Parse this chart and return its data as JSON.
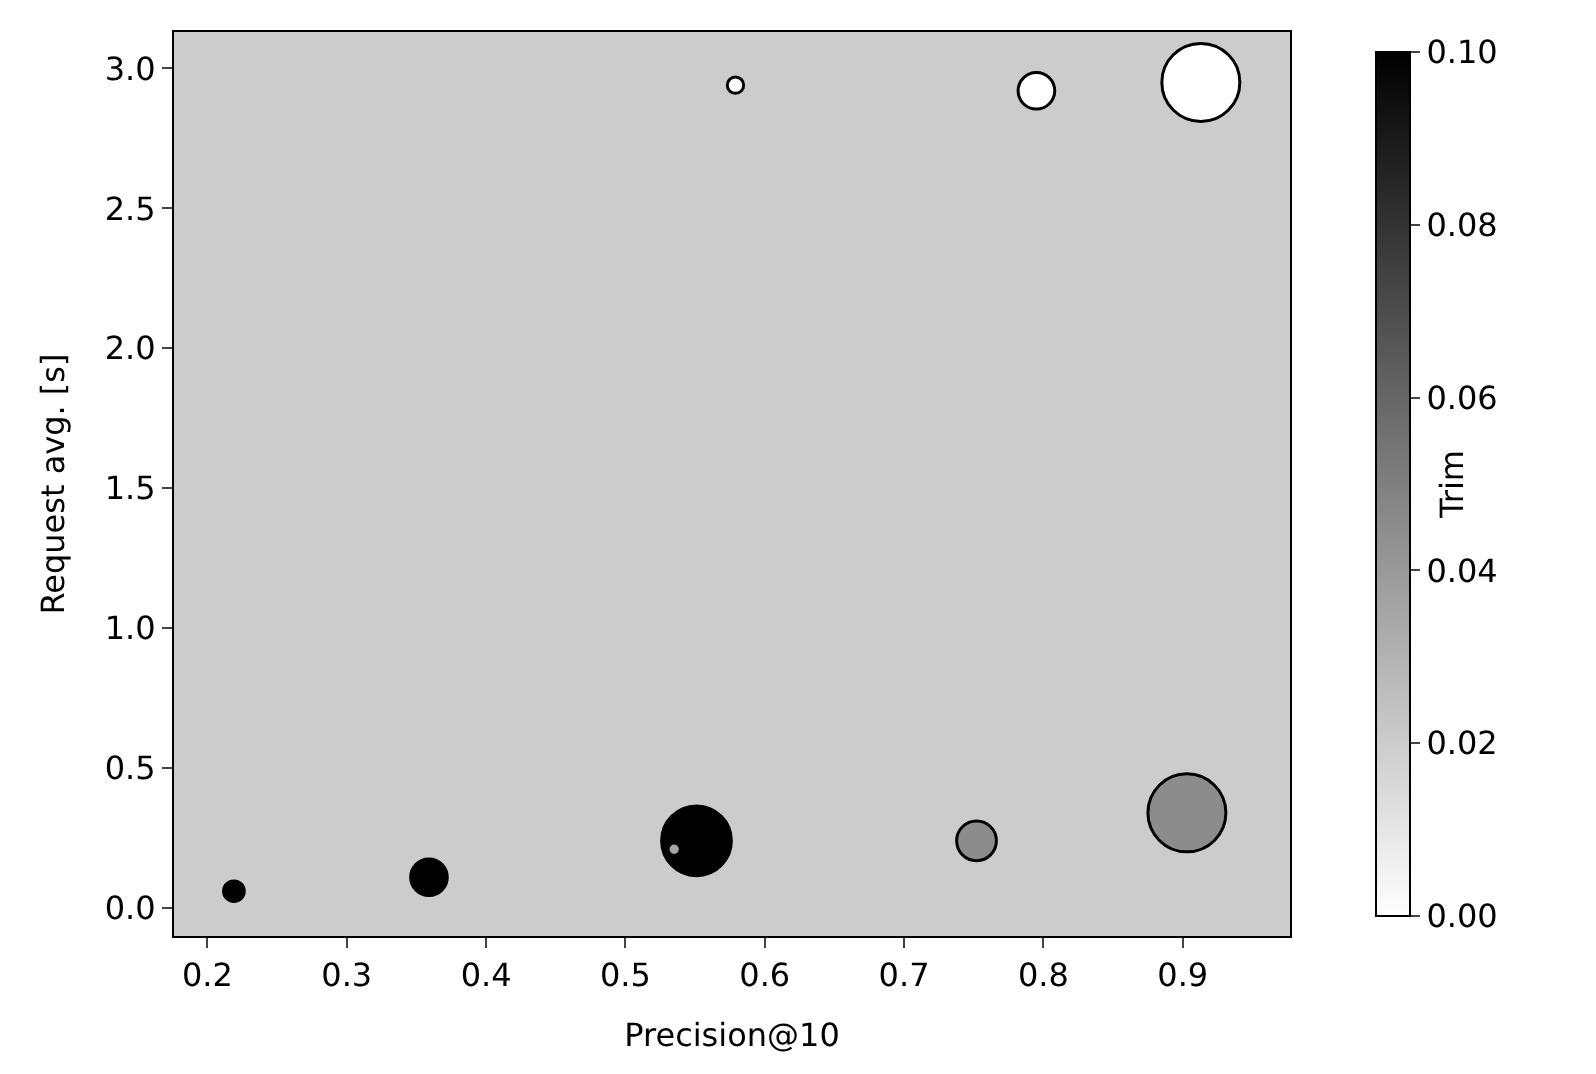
{
  "chart_data": {
    "type": "bubble",
    "xlabel": "Precision@10",
    "ylabel": "Request avg. [s]",
    "clabel": "Trim",
    "x": [
      0.219,
      0.359,
      0.551,
      0.535,
      0.752,
      0.903,
      0.579,
      0.795,
      0.913
    ],
    "values": [
      0.06,
      0.11,
      0.24,
      0.21,
      0.24,
      0.34,
      2.94,
      2.92,
      2.95
    ],
    "sizes": [
      0.07,
      0.22,
      0.8,
      0.025,
      0.26,
      1,
      0.044,
      0.22,
      1
    ],
    "cvalues": [
      0.1,
      0.1,
      0.1,
      0.035,
      0.045,
      0.045,
      0,
      0,
      0
    ],
    "clim": [
      0,
      0.1
    ],
    "cticks": [
      {
        "value": 0,
        "label": "0.00"
      },
      {
        "value": 0.02,
        "label": "0.02"
      },
      {
        "value": 0.04,
        "label": "0.04"
      },
      {
        "value": 0.06,
        "label": "0.06"
      },
      {
        "value": 0.08,
        "label": "0.08"
      },
      {
        "value": 0.1,
        "label": "0.10"
      }
    ],
    "xlim": [
      0.176,
      0.977
    ],
    "xticks": [
      0.2,
      0.3,
      0.4,
      0.5,
      0.6,
      0.7,
      0.8,
      0.9
    ],
    "ylim": [
      -0.1,
      3.13
    ],
    "yticks": [
      {
        "value": 0,
        "label": "0.0"
      },
      0.5,
      {
        "value": 1,
        "label": "1.0"
      },
      1.5,
      {
        "value": 2,
        "label": "2.0"
      },
      2.5,
      {
        "value": 3,
        "label": "3.0"
      }
    ],
    "marker": "circle",
    "grid": false
  }
}
